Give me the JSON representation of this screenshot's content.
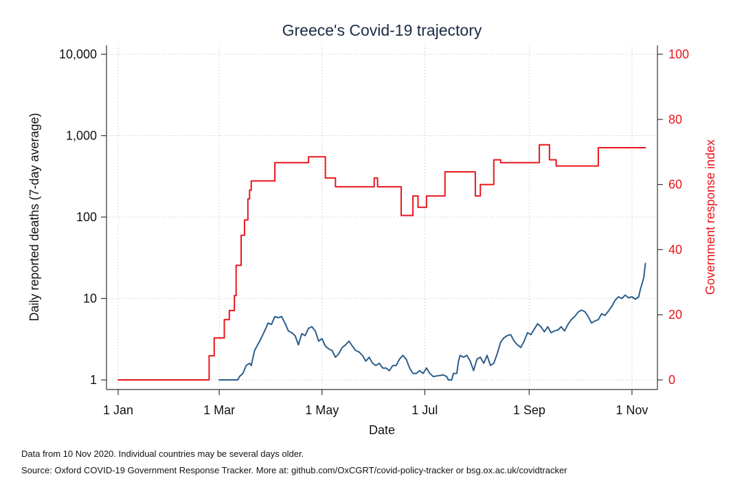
{
  "chart_data": {
    "type": "line",
    "title": "Greece's Covid-19 trajectory",
    "xlabel": "Date",
    "ylabel_left": "Daily reported deaths (7-day average)",
    "ylabel_right": "Government response index",
    "x_ticks": [
      {
        "date": "2020-01-01",
        "label": "1 Jan"
      },
      {
        "date": "2020-03-01",
        "label": "1 Mar"
      },
      {
        "date": "2020-05-01",
        "label": "1 May"
      },
      {
        "date": "2020-07-01",
        "label": "1 Jul"
      },
      {
        "date": "2020-09-01",
        "label": "1 Sep"
      },
      {
        "date": "2020-11-01",
        "label": "1 Nov"
      }
    ],
    "xlim": [
      "2020-01-01",
      "2020-11-10"
    ],
    "y_left": {
      "scale": "log",
      "ylim": [
        1,
        10000
      ],
      "ticks": [
        {
          "value": 1,
          "label": "1"
        },
        {
          "value": 10,
          "label": "10"
        },
        {
          "value": 100,
          "label": "100"
        },
        {
          "value": 1000,
          "label": "1,000"
        },
        {
          "value": 10000,
          "label": "10,000"
        }
      ]
    },
    "y_right": {
      "scale": "linear",
      "ylim": [
        0,
        100
      ],
      "ticks": [
        {
          "value": 0,
          "label": "0"
        },
        {
          "value": 20,
          "label": "20"
        },
        {
          "value": 40,
          "label": "40"
        },
        {
          "value": 60,
          "label": "60"
        },
        {
          "value": 80,
          "label": "80"
        },
        {
          "value": 100,
          "label": "100"
        }
      ]
    },
    "grid": true,
    "legend": "none",
    "series": [
      {
        "axis": "left",
        "color": "#2b5d8a",
        "points": [
          [
            "2020-03-01",
            1
          ],
          [
            "2020-03-12",
            1
          ],
          [
            "2020-03-13",
            1.1
          ],
          [
            "2020-03-15",
            1.2
          ],
          [
            "2020-03-17",
            1.5
          ],
          [
            "2020-03-19",
            1.6
          ],
          [
            "2020-03-20",
            1.5
          ],
          [
            "2020-03-22",
            2.3
          ],
          [
            "2020-03-25",
            3.0
          ],
          [
            "2020-03-28",
            4.0
          ],
          [
            "2020-03-30",
            5.0
          ],
          [
            "2020-04-01",
            4.8
          ],
          [
            "2020-04-03",
            6.0
          ],
          [
            "2020-04-05",
            5.8
          ],
          [
            "2020-04-07",
            6.0
          ],
          [
            "2020-04-09",
            5.0
          ],
          [
            "2020-04-11",
            4.0
          ],
          [
            "2020-04-13",
            3.8
          ],
          [
            "2020-04-15",
            3.5
          ],
          [
            "2020-04-17",
            2.7
          ],
          [
            "2020-04-19",
            3.7
          ],
          [
            "2020-04-21",
            3.5
          ],
          [
            "2020-04-23",
            4.3
          ],
          [
            "2020-04-25",
            4.5
          ],
          [
            "2020-04-27",
            4.0
          ],
          [
            "2020-04-29",
            3.0
          ],
          [
            "2020-05-01",
            3.2
          ],
          [
            "2020-05-03",
            2.6
          ],
          [
            "2020-05-05",
            2.4
          ],
          [
            "2020-05-07",
            2.3
          ],
          [
            "2020-05-09",
            1.9
          ],
          [
            "2020-05-11",
            2.1
          ],
          [
            "2020-05-13",
            2.5
          ],
          [
            "2020-05-15",
            2.7
          ],
          [
            "2020-05-17",
            3.0
          ],
          [
            "2020-05-19",
            2.6
          ],
          [
            "2020-05-21",
            2.3
          ],
          [
            "2020-05-23",
            2.2
          ],
          [
            "2020-05-25",
            2.0
          ],
          [
            "2020-05-27",
            1.7
          ],
          [
            "2020-05-29",
            1.9
          ],
          [
            "2020-05-31",
            1.6
          ],
          [
            "2020-06-02",
            1.5
          ],
          [
            "2020-06-04",
            1.6
          ],
          [
            "2020-06-06",
            1.4
          ],
          [
            "2020-06-08",
            1.4
          ],
          [
            "2020-06-10",
            1.3
          ],
          [
            "2020-06-12",
            1.5
          ],
          [
            "2020-06-14",
            1.5
          ],
          [
            "2020-06-16",
            1.8
          ],
          [
            "2020-06-18",
            2.0
          ],
          [
            "2020-06-20",
            1.8
          ],
          [
            "2020-06-22",
            1.4
          ],
          [
            "2020-06-24",
            1.2
          ],
          [
            "2020-06-26",
            1.2
          ],
          [
            "2020-06-28",
            1.3
          ],
          [
            "2020-06-30",
            1.2
          ],
          [
            "2020-07-02",
            1.4
          ],
          [
            "2020-07-04",
            1.2
          ],
          [
            "2020-07-06",
            1.1
          ],
          [
            "2020-07-12",
            1.15
          ],
          [
            "2020-07-14",
            1.1
          ],
          [
            "2020-07-15",
            1.0
          ],
          [
            "2020-07-17",
            1.0
          ],
          [
            "2020-07-18",
            1.2
          ],
          [
            "2020-07-20",
            1.2
          ],
          [
            "2020-07-21",
            1.7
          ],
          [
            "2020-07-22",
            2.0
          ],
          [
            "2020-07-24",
            1.9
          ],
          [
            "2020-07-26",
            2.0
          ],
          [
            "2020-07-28",
            1.7
          ],
          [
            "2020-07-30",
            1.3
          ],
          [
            "2020-08-01",
            1.8
          ],
          [
            "2020-08-03",
            1.9
          ],
          [
            "2020-08-05",
            1.6
          ],
          [
            "2020-08-07",
            2.0
          ],
          [
            "2020-08-09",
            1.5
          ],
          [
            "2020-08-11",
            1.6
          ],
          [
            "2020-08-13",
            2.1
          ],
          [
            "2020-08-15",
            2.9
          ],
          [
            "2020-08-17",
            3.3
          ],
          [
            "2020-08-19",
            3.5
          ],
          [
            "2020-08-21",
            3.6
          ],
          [
            "2020-08-23",
            3.0
          ],
          [
            "2020-08-25",
            2.7
          ],
          [
            "2020-08-27",
            2.5
          ],
          [
            "2020-08-29",
            3.0
          ],
          [
            "2020-08-31",
            3.8
          ],
          [
            "2020-09-02",
            3.6
          ],
          [
            "2020-09-04",
            4.2
          ],
          [
            "2020-09-06",
            4.9
          ],
          [
            "2020-09-08",
            4.5
          ],
          [
            "2020-09-10",
            3.9
          ],
          [
            "2020-09-12",
            4.5
          ],
          [
            "2020-09-14",
            3.8
          ],
          [
            "2020-09-16",
            4.0
          ],
          [
            "2020-09-18",
            4.1
          ],
          [
            "2020-09-20",
            4.5
          ],
          [
            "2020-09-22",
            4.0
          ],
          [
            "2020-09-24",
            4.8
          ],
          [
            "2020-09-26",
            5.5
          ],
          [
            "2020-09-28",
            6.0
          ],
          [
            "2020-09-30",
            6.8
          ],
          [
            "2020-10-02",
            7.2
          ],
          [
            "2020-10-04",
            6.9
          ],
          [
            "2020-10-06",
            6.0
          ],
          [
            "2020-10-08",
            5.0
          ],
          [
            "2020-10-10",
            5.3
          ],
          [
            "2020-10-12",
            5.5
          ],
          [
            "2020-10-14",
            6.5
          ],
          [
            "2020-10-16",
            6.2
          ],
          [
            "2020-10-18",
            7.0
          ],
          [
            "2020-10-20",
            8.0
          ],
          [
            "2020-10-22",
            9.5
          ],
          [
            "2020-10-24",
            10.5
          ],
          [
            "2020-10-26",
            10.0
          ],
          [
            "2020-10-28",
            11.0
          ],
          [
            "2020-10-30",
            10.2
          ],
          [
            "2020-11-01",
            10.5
          ],
          [
            "2020-11-03",
            9.8
          ],
          [
            "2020-11-05",
            10.5
          ],
          [
            "2020-11-06",
            13.0
          ],
          [
            "2020-11-08",
            18.0
          ],
          [
            "2020-11-09",
            27.0
          ]
        ]
      },
      {
        "axis": "right",
        "color": "#e8141b",
        "points": [
          [
            "2020-01-01",
            0
          ],
          [
            "2020-02-24",
            0
          ],
          [
            "2020-02-24",
            7.4
          ],
          [
            "2020-02-27",
            7.4
          ],
          [
            "2020-02-27",
            12.9
          ],
          [
            "2020-03-04",
            12.9
          ],
          [
            "2020-03-04",
            18.5
          ],
          [
            "2020-03-07",
            18.5
          ],
          [
            "2020-03-07",
            21.3
          ],
          [
            "2020-03-10",
            21.3
          ],
          [
            "2020-03-10",
            25.9
          ],
          [
            "2020-03-11",
            25.9
          ],
          [
            "2020-03-11",
            35.2
          ],
          [
            "2020-03-14",
            35.2
          ],
          [
            "2020-03-14",
            44.4
          ],
          [
            "2020-03-16",
            44.4
          ],
          [
            "2020-03-16",
            49.1
          ],
          [
            "2020-03-18",
            49.1
          ],
          [
            "2020-03-18",
            55.6
          ],
          [
            "2020-03-19",
            55.6
          ],
          [
            "2020-03-19",
            58.3
          ],
          [
            "2020-03-20",
            58.3
          ],
          [
            "2020-03-20",
            61.1
          ],
          [
            "2020-04-03",
            61.1
          ],
          [
            "2020-04-03",
            66.7
          ],
          [
            "2020-04-23",
            66.7
          ],
          [
            "2020-04-23",
            68.5
          ],
          [
            "2020-05-03",
            68.5
          ],
          [
            "2020-05-03",
            62.0
          ],
          [
            "2020-05-09",
            62.0
          ],
          [
            "2020-05-09",
            59.3
          ],
          [
            "2020-06-01",
            59.3
          ],
          [
            "2020-06-01",
            62.0
          ],
          [
            "2020-06-03",
            62.0
          ],
          [
            "2020-06-03",
            59.3
          ],
          [
            "2020-06-17",
            59.3
          ],
          [
            "2020-06-17",
            50.5
          ],
          [
            "2020-06-24",
            50.5
          ],
          [
            "2020-06-24",
            56.5
          ],
          [
            "2020-06-27",
            56.5
          ],
          [
            "2020-06-27",
            53.0
          ],
          [
            "2020-07-02",
            53.0
          ],
          [
            "2020-07-02",
            56.5
          ],
          [
            "2020-07-13",
            56.5
          ],
          [
            "2020-07-13",
            63.9
          ],
          [
            "2020-07-31",
            63.9
          ],
          [
            "2020-07-31",
            56.5
          ],
          [
            "2020-08-03",
            56.5
          ],
          [
            "2020-08-03",
            60.0
          ],
          [
            "2020-08-11",
            60.0
          ],
          [
            "2020-08-11",
            67.6
          ],
          [
            "2020-08-15",
            67.6
          ],
          [
            "2020-08-15",
            66.7
          ],
          [
            "2020-09-07",
            66.7
          ],
          [
            "2020-09-07",
            72.2
          ],
          [
            "2020-09-13",
            72.2
          ],
          [
            "2020-09-13",
            67.6
          ],
          [
            "2020-09-17",
            67.6
          ],
          [
            "2020-09-17",
            65.7
          ],
          [
            "2020-10-12",
            65.7
          ],
          [
            "2020-10-12",
            71.3
          ],
          [
            "2020-11-09",
            71.3
          ]
        ]
      }
    ],
    "notes": [
      "Data from 10 Nov 2020. Individual countries may be several days older.",
      "Source: Oxford COVID-19 Government Response Tracker. More at: github.com/OxCGRT/covid-policy-tracker or bsg.ox.ac.uk/covidtracker"
    ]
  }
}
